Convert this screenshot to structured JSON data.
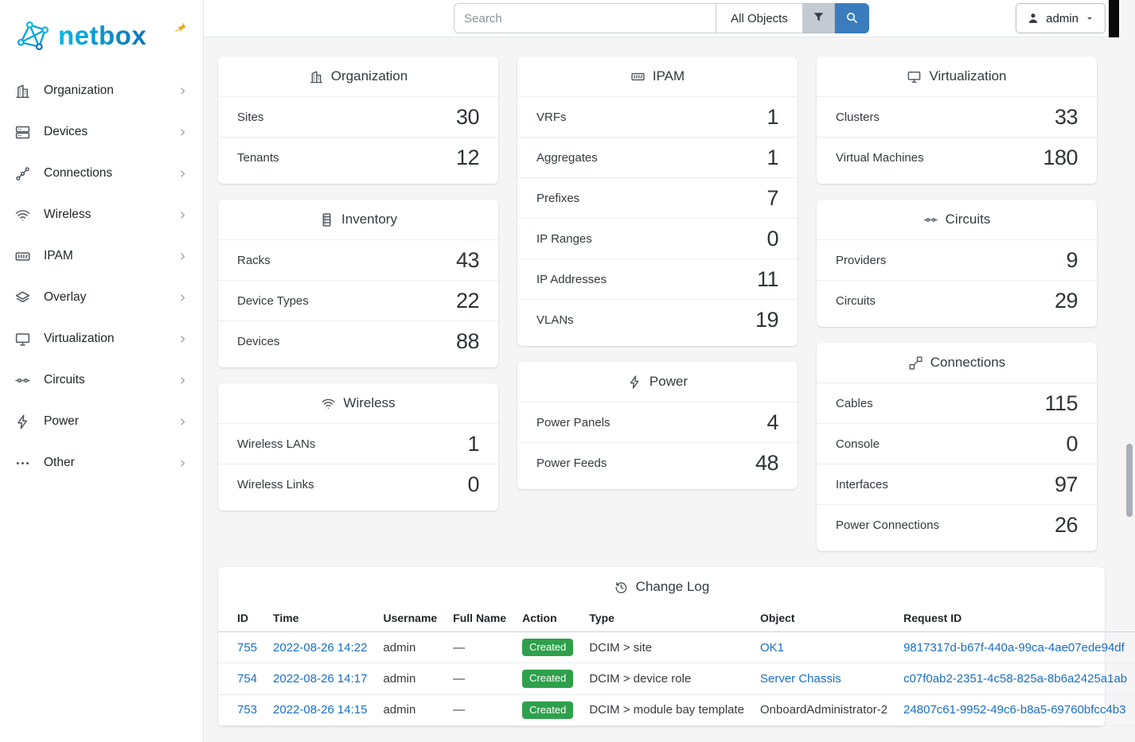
{
  "brand": {
    "name": "netbox",
    "logo_icon": "logo",
    "pin_icon": "pin"
  },
  "topbar": {
    "search_placeholder": "Search",
    "search_value": "",
    "scope_button": "All Objects",
    "filter_icon": "funnel",
    "search_icon": "magnifier",
    "user": {
      "label": "admin",
      "icon": "person",
      "caret_icon": "caret"
    }
  },
  "sidebar": {
    "items": [
      {
        "label": "Organization",
        "icon": "building"
      },
      {
        "label": "Devices",
        "icon": "server"
      },
      {
        "label": "Connections",
        "icon": "graph"
      },
      {
        "label": "Wireless",
        "icon": "wifi"
      },
      {
        "label": "IPAM",
        "icon": "counter"
      },
      {
        "label": "Overlay",
        "icon": "layers"
      },
      {
        "label": "Virtualization",
        "icon": "monitor"
      },
      {
        "label": "Circuits",
        "icon": "transit"
      },
      {
        "label": "Power",
        "icon": "flash"
      },
      {
        "label": "Other",
        "icon": "dots"
      }
    ]
  },
  "dashboard": {
    "columns": [
      [
        {
          "title": "Organization",
          "icon": "building",
          "rows": [
            [
              "Sites",
              "30"
            ],
            [
              "Tenants",
              "12"
            ]
          ]
        },
        {
          "title": "Inventory",
          "icon": "rack",
          "rows": [
            [
              "Racks",
              "43"
            ],
            [
              "Device Types",
              "22"
            ],
            [
              "Devices",
              "88"
            ]
          ]
        },
        {
          "title": "Wireless",
          "icon": "wifi",
          "rows": [
            [
              "Wireless LANs",
              "1"
            ],
            [
              "Wireless Links",
              "0"
            ]
          ]
        }
      ],
      [
        {
          "title": "IPAM",
          "icon": "counter",
          "rows": [
            [
              "VRFs",
              "1"
            ],
            [
              "Aggregates",
              "1"
            ],
            [
              "Prefixes",
              "7"
            ],
            [
              "IP Ranges",
              "0"
            ],
            [
              "IP Addresses",
              "11"
            ],
            [
              "VLANs",
              "19"
            ]
          ]
        },
        {
          "title": "Power",
          "icon": "flash",
          "rows": [
            [
              "Power Panels",
              "4"
            ],
            [
              "Power Feeds",
              "48"
            ]
          ]
        }
      ],
      [
        {
          "title": "Virtualization",
          "icon": "monitor",
          "rows": [
            [
              "Clusters",
              "33"
            ],
            [
              "Virtual Machines",
              "180"
            ]
          ]
        },
        {
          "title": "Circuits",
          "icon": "transit",
          "rows": [
            [
              "Providers",
              "9"
            ],
            [
              "Circuits",
              "29"
            ]
          ]
        },
        {
          "title": "Connections",
          "icon": "cable",
          "rows": [
            [
              "Cables",
              "115"
            ],
            [
              "Console",
              "0"
            ],
            [
              "Interfaces",
              "97"
            ],
            [
              "Power Connections",
              "26"
            ]
          ]
        }
      ]
    ]
  },
  "changelog": {
    "icon": "history",
    "title": "Change Log",
    "columns": [
      "ID",
      "Time",
      "Username",
      "Full Name",
      "Action",
      "Type",
      "Object",
      "Request ID"
    ],
    "rows": [
      {
        "id": "755",
        "time": "2022-08-26 14:22",
        "username": "admin",
        "full_name": "—",
        "action": "Created",
        "type": "DCIM > site",
        "object": "OK1",
        "object_link": true,
        "request_id": "9817317d-b67f-440a-99ca-4ae07ede94df"
      },
      {
        "id": "754",
        "time": "2022-08-26 14:17",
        "username": "admin",
        "full_name": "—",
        "action": "Created",
        "type": "DCIM > device role",
        "object": "Server Chassis",
        "object_link": true,
        "request_id": "c07f0ab2-2351-4c58-825a-8b6a2425a1ab"
      },
      {
        "id": "753",
        "time": "2022-08-26 14:15",
        "username": "admin",
        "full_name": "—",
        "action": "Created",
        "type": "DCIM > module bay template",
        "object": "OnboardAdministrator-2",
        "object_link": false,
        "request_id": "24807c61-9952-49c6-b8a5-69760bfcc4b3"
      }
    ]
  },
  "colors": {
    "brand_blue": "#00aee0",
    "link_blue": "#1b6ec2",
    "primary_button_blue": "#3a7cbe",
    "created_badge_green": "#2ea04c",
    "pin_amber": "#eda50b"
  }
}
